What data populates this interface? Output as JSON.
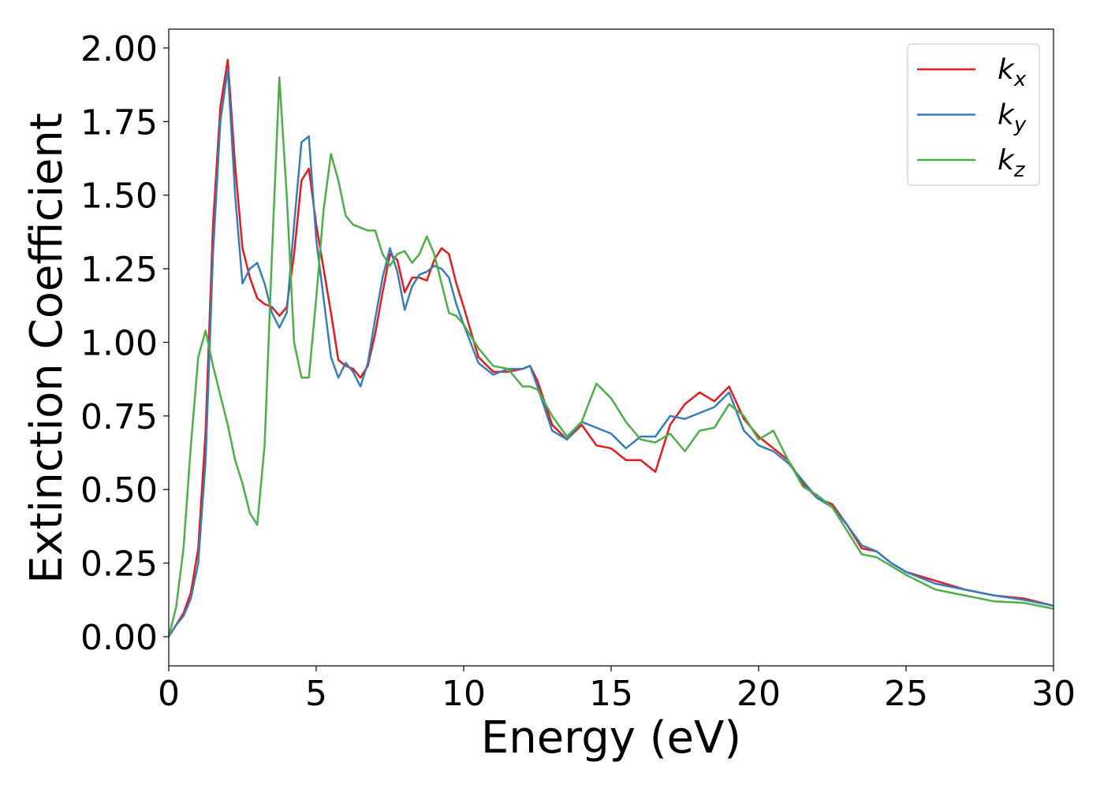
{
  "chart_data": {
    "type": "line",
    "xlabel": "Energy (eV)",
    "ylabel": "Extinction Coefficient",
    "x": [
      0,
      0.25,
      0.5,
      0.75,
      1,
      1.25,
      1.5,
      1.75,
      2,
      2.25,
      2.5,
      2.75,
      3,
      3.25,
      3.5,
      3.75,
      4,
      4.25,
      4.5,
      4.75,
      5,
      5.25,
      5.5,
      5.75,
      6,
      6.25,
      6.5,
      6.75,
      7,
      7.25,
      7.5,
      7.75,
      8,
      8.25,
      8.5,
      8.75,
      9,
      9.25,
      9.5,
      9.75,
      10,
      10.5,
      11,
      11.5,
      12,
      12.25,
      12.5,
      13,
      13.5,
      14,
      14.5,
      15,
      15.5,
      16,
      16.5,
      17,
      17.5,
      18,
      18.5,
      19,
      19.5,
      20,
      20.5,
      21,
      21.5,
      22,
      22.5,
      23,
      23.5,
      24,
      24.5,
      25,
      26,
      27,
      28,
      29,
      30
    ],
    "series": [
      {
        "name": "kx",
        "color": "#e41a1c",
        "values": [
          0,
          0.04,
          0.08,
          0.15,
          0.3,
          0.7,
          1.4,
          1.8,
          1.96,
          1.6,
          1.32,
          1.22,
          1.15,
          1.13,
          1.12,
          1.09,
          1.12,
          1.3,
          1.55,
          1.59,
          1.4,
          1.25,
          1.1,
          0.94,
          0.92,
          0.91,
          0.88,
          0.92,
          1.03,
          1.17,
          1.3,
          1.28,
          1.17,
          1.22,
          1.22,
          1.21,
          1.28,
          1.32,
          1.3,
          1.2,
          1.12,
          0.95,
          0.9,
          0.9,
          0.91,
          0.92,
          0.87,
          0.72,
          0.67,
          0.72,
          0.65,
          0.64,
          0.6,
          0.6,
          0.56,
          0.72,
          0.79,
          0.83,
          0.8,
          0.85,
          0.74,
          0.68,
          0.64,
          0.6,
          0.52,
          0.47,
          0.45,
          0.38,
          0.3,
          0.29,
          0.25,
          0.22,
          0.19,
          0.16,
          0.14,
          0.13,
          0.105
        ]
      },
      {
        "name": "ky",
        "color": "#377eb8",
        "values": [
          0,
          0.04,
          0.07,
          0.13,
          0.25,
          0.6,
          1.3,
          1.75,
          1.93,
          1.5,
          1.2,
          1.25,
          1.27,
          1.2,
          1.1,
          1.05,
          1.1,
          1.4,
          1.68,
          1.7,
          1.35,
          1.15,
          0.95,
          0.88,
          0.93,
          0.9,
          0.85,
          0.93,
          1.08,
          1.22,
          1.32,
          1.24,
          1.11,
          1.19,
          1.23,
          1.24,
          1.26,
          1.25,
          1.22,
          1.13,
          1.06,
          0.93,
          0.89,
          0.91,
          0.91,
          0.92,
          0.85,
          0.7,
          0.67,
          0.73,
          0.71,
          0.69,
          0.64,
          0.68,
          0.68,
          0.75,
          0.74,
          0.76,
          0.78,
          0.83,
          0.7,
          0.65,
          0.63,
          0.59,
          0.53,
          0.47,
          0.44,
          0.38,
          0.31,
          0.29,
          0.25,
          0.22,
          0.18,
          0.16,
          0.14,
          0.125,
          0.105
        ]
      },
      {
        "name": "kz",
        "color": "#4daf4a",
        "values": [
          0,
          0.1,
          0.3,
          0.65,
          0.95,
          1.04,
          0.92,
          0.82,
          0.72,
          0.6,
          0.52,
          0.42,
          0.38,
          0.65,
          1.3,
          1.9,
          1.5,
          1.0,
          0.88,
          0.88,
          1.15,
          1.45,
          1.64,
          1.55,
          1.43,
          1.4,
          1.39,
          1.38,
          1.38,
          1.3,
          1.26,
          1.3,
          1.31,
          1.27,
          1.3,
          1.36,
          1.3,
          1.2,
          1.1,
          1.09,
          1.06,
          0.98,
          0.92,
          0.91,
          0.85,
          0.85,
          0.84,
          0.75,
          0.68,
          0.73,
          0.86,
          0.81,
          0.73,
          0.67,
          0.66,
          0.69,
          0.63,
          0.7,
          0.71,
          0.79,
          0.75,
          0.67,
          0.7,
          0.6,
          0.51,
          0.48,
          0.44,
          0.36,
          0.28,
          0.27,
          0.24,
          0.21,
          0.16,
          0.14,
          0.12,
          0.115,
          0.095
        ]
      }
    ],
    "xlim": [
      0,
      30
    ],
    "xticks": [
      0,
      5,
      10,
      15,
      20,
      25,
      30
    ],
    "ylim": [
      -0.099,
      2.064
    ],
    "yticks": [
      {
        "value": 0,
        "label": "0.00"
      },
      {
        "value": 0.25,
        "label": "0.25"
      },
      {
        "value": 0.5,
        "label": "0.50"
      },
      {
        "value": 0.75,
        "label": "0.75"
      },
      {
        "value": 1,
        "label": "1.00"
      },
      {
        "value": 1.25,
        "label": "1.25"
      },
      {
        "value": 1.5,
        "label": "1.50"
      },
      {
        "value": 1.75,
        "label": "1.75"
      },
      {
        "value": 2,
        "label": "2.00"
      }
    ],
    "legend": "upper right"
  }
}
